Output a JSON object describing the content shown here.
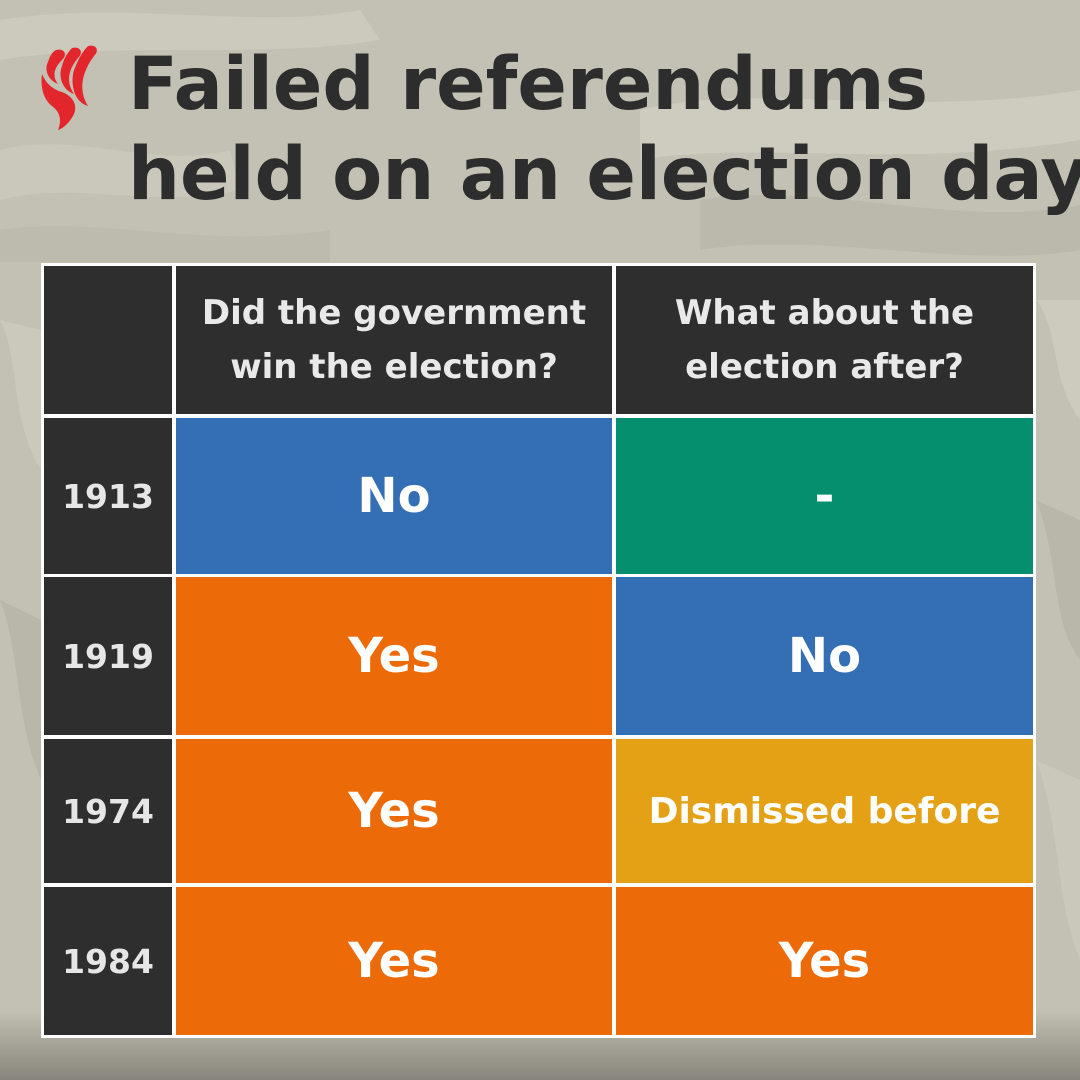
{
  "title": {
    "line1": "Failed referendums",
    "line2": "held on an election day"
  },
  "colors": {
    "blue": "#346fb5",
    "green": "#068f6f",
    "orange": "#ec6b08",
    "amber": "#e5a116",
    "dark": "#2e2e2e",
    "logo_red": "#e3262c"
  },
  "table": {
    "headers": [
      "",
      "Did the government win the election?",
      "What about the election after?"
    ],
    "rows": [
      {
        "year": "1913",
        "won": "No",
        "after": "-",
        "won_color": "blue",
        "after_color": "green"
      },
      {
        "year": "1919",
        "won": "Yes",
        "after": "No",
        "won_color": "orange",
        "after_color": "blue"
      },
      {
        "year": "1974",
        "won": "Yes",
        "after": "Dismissed before",
        "won_color": "orange",
        "after_color": "amber"
      },
      {
        "year": "1984",
        "won": "Yes",
        "after": "Yes",
        "won_color": "orange",
        "after_color": "orange"
      }
    ]
  }
}
